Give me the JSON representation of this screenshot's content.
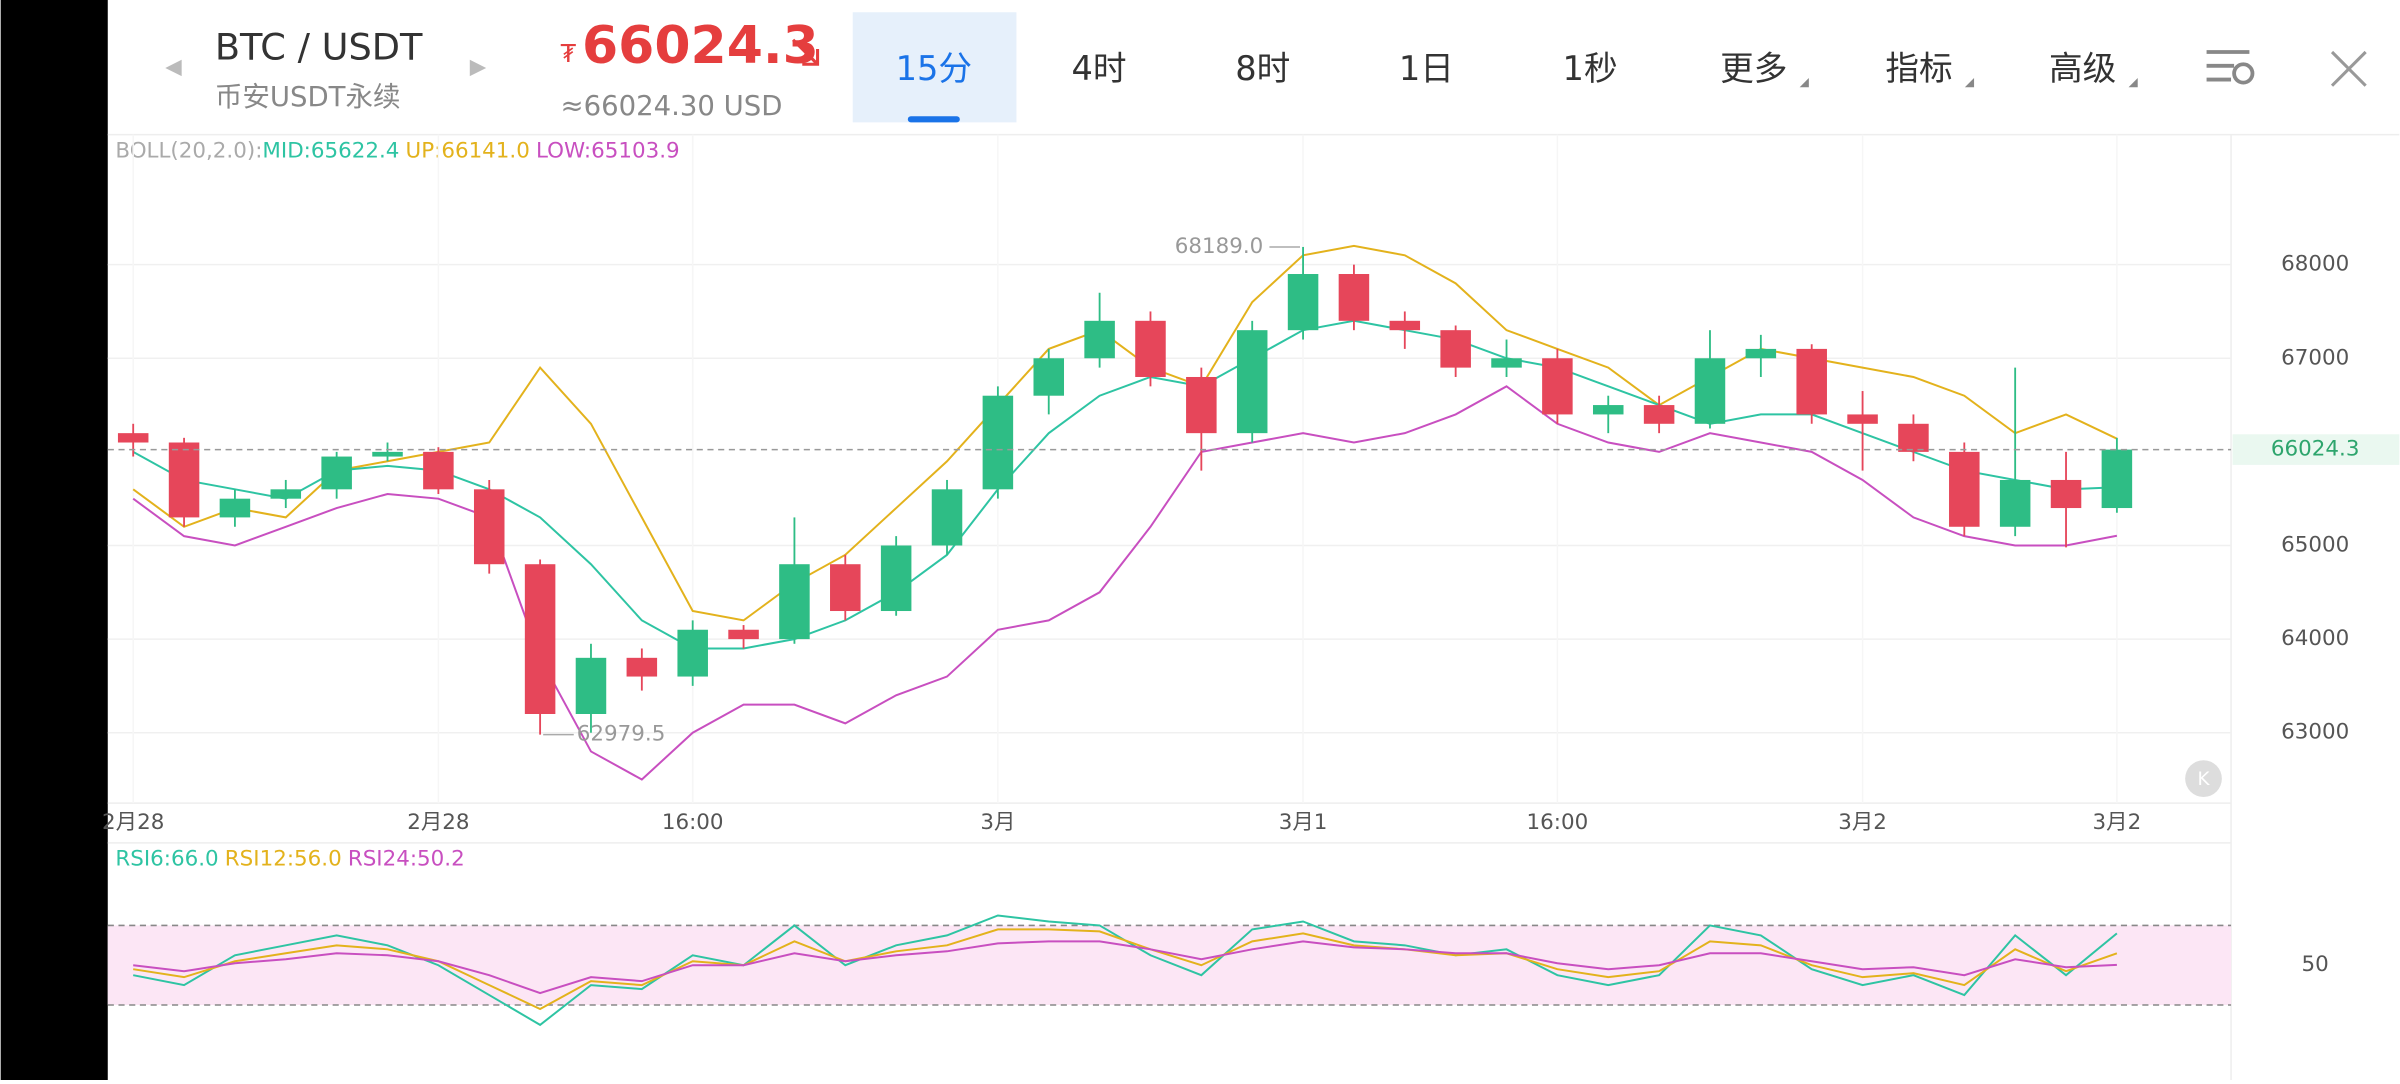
{
  "header": {
    "pair": "BTC / USDT",
    "market": "币安USDT永续",
    "currency_symbol": "₮",
    "price": 66024.3,
    "price_usd": "≈66024.30 USD",
    "tabs": [
      "15分",
      "4时",
      "8时",
      "1日",
      "1秒",
      "更多",
      "指标",
      "高级"
    ],
    "selected_tab": "15分"
  },
  "chart_data": [
    {
      "type": "candlestick",
      "indicator_label": "BOLL(20,2.0):",
      "indicator_values": [
        "MID:65622.4",
        "UP:66141.0",
        "LOW:65103.9"
      ],
      "up_color": "#2ebd85",
      "down_color": "#e6465a",
      "categories": [
        "2月28",
        null,
        null,
        null,
        null,
        null,
        "2月28",
        null,
        null,
        null,
        null,
        "16:00",
        null,
        null,
        null,
        null,
        null,
        "3月",
        null,
        null,
        null,
        null,
        null,
        "3月1",
        null,
        null,
        null,
        null,
        "16:00",
        null,
        null,
        null,
        null,
        null,
        "3月2",
        null,
        null,
        null,
        null,
        "3月2"
      ],
      "ohlc": [
        [
          66200,
          66300,
          65950,
          66100
        ],
        [
          66100,
          66150,
          65200,
          65300
        ],
        [
          65300,
          65600,
          65200,
          65500
        ],
        [
          65500,
          65700,
          65400,
          65600
        ],
        [
          65600,
          66000,
          65500,
          65950
        ],
        [
          65950,
          66100,
          65900,
          66000
        ],
        [
          66000,
          66050,
          65550,
          65600
        ],
        [
          65600,
          65700,
          64700,
          64800
        ],
        [
          64800,
          64850,
          62979.5,
          63200
        ],
        [
          63200,
          63950,
          63000,
          63800
        ],
        [
          63800,
          63900,
          63450,
          63600
        ],
        [
          63600,
          64200,
          63500,
          64100
        ],
        [
          64100,
          64150,
          63900,
          64000
        ],
        [
          64000,
          65300,
          63950,
          64800
        ],
        [
          64800,
          64900,
          64200,
          64300
        ],
        [
          64300,
          65100,
          64250,
          65000
        ],
        [
          65000,
          65700,
          64900,
          65600
        ],
        [
          65600,
          66700,
          65500,
          66600
        ],
        [
          66600,
          67100,
          66400,
          67000
        ],
        [
          67000,
          67700,
          66900,
          67400
        ],
        [
          67400,
          67500,
          66700,
          66800
        ],
        [
          66800,
          66900,
          65800,
          66200
        ],
        [
          66200,
          67400,
          66100,
          67300
        ],
        [
          67300,
          68189,
          67200,
          67900
        ],
        [
          67900,
          68000,
          67300,
          67400
        ],
        [
          67400,
          67500,
          67100,
          67300
        ],
        [
          67300,
          67350,
          66800,
          66900
        ],
        [
          66900,
          67200,
          66800,
          67000
        ],
        [
          67000,
          67100,
          66300,
          66400
        ],
        [
          66400,
          66600,
          66200,
          66500
        ],
        [
          66500,
          66600,
          66200,
          66300
        ],
        [
          66300,
          67300,
          66250,
          67000
        ],
        [
          67000,
          67250,
          66800,
          67100
        ],
        [
          67100,
          67150,
          66300,
          66400
        ],
        [
          66400,
          66650,
          65800,
          66300
        ],
        [
          66300,
          66400,
          65900,
          66000
        ],
        [
          66000,
          66100,
          65100,
          65200
        ],
        [
          65200,
          66900,
          65100,
          65700
        ],
        [
          65700,
          66000,
          64980,
          65400
        ],
        [
          65400,
          66150,
          65350,
          66024.3
        ]
      ],
      "series": [
        {
          "name": "UP",
          "color": "#e3b21c",
          "values": [
            65600,
            65200,
            65400,
            65300,
            65800,
            65900,
            66000,
            66100,
            66900,
            66300,
            65300,
            64300,
            64200,
            64600,
            64900,
            65400,
            65900,
            66500,
            67100,
            67300,
            66900,
            66700,
            67600,
            68100,
            68200,
            68100,
            67800,
            67300,
            67100,
            66900,
            66500,
            66800,
            67100,
            67000,
            66900,
            66800,
            66600,
            66200,
            66400,
            66141
          ]
        },
        {
          "name": "MID",
          "color": "#2ec4a3",
          "values": [
            66000,
            65700,
            65600,
            65500,
            65800,
            65850,
            65800,
            65600,
            65300,
            64800,
            64200,
            63900,
            63900,
            64000,
            64200,
            64500,
            64900,
            65600,
            66200,
            66600,
            66800,
            66700,
            67000,
            67300,
            67400,
            67300,
            67200,
            67000,
            66900,
            66700,
            66500,
            66300,
            66400,
            66400,
            66200,
            66000,
            65800,
            65700,
            65600,
            65622.4
          ]
        },
        {
          "name": "LOW",
          "color": "#c84fc0",
          "values": [
            65500,
            65100,
            65000,
            65200,
            65400,
            65550,
            65500,
            65300,
            63800,
            62800,
            62500,
            63000,
            63300,
            63300,
            63100,
            63400,
            63600,
            64100,
            64200,
            64500,
            65200,
            66000,
            66100,
            66200,
            66100,
            66200,
            66400,
            66700,
            66300,
            66100,
            66000,
            66200,
            66100,
            66000,
            65700,
            65300,
            65100,
            65000,
            65000,
            65103.9
          ]
        }
      ],
      "ylim": [
        62248,
        69389
      ],
      "yticks": [
        63000,
        64000,
        65000,
        67000,
        68000
      ],
      "grid": true,
      "last": 66024.3,
      "annotations": [
        {
          "label": "68189.0",
          "index": 23
        },
        {
          "label": "62979.5",
          "index": 8
        }
      ]
    },
    {
      "type": "line",
      "indicator_values": [
        "RSI6:66.0",
        "RSI12:56.0",
        "RSI24:50.2"
      ],
      "series": [
        {
          "name": "RSI6",
          "color": "#2ec4a3",
          "values": [
            45,
            40,
            55,
            60,
            65,
            60,
            50,
            35,
            20,
            40,
            38,
            55,
            50,
            70,
            50,
            60,
            65,
            75,
            72,
            70,
            55,
            45,
            68,
            72,
            62,
            60,
            55,
            58,
            45,
            40,
            45,
            70,
            65,
            48,
            40,
            45,
            35,
            65,
            45,
            66.0
          ]
        },
        {
          "name": "RSI12",
          "color": "#e3b21c",
          "values": [
            48,
            44,
            52,
            56,
            60,
            58,
            52,
            40,
            28,
            42,
            40,
            52,
            50,
            62,
            52,
            57,
            60,
            68,
            68,
            67,
            58,
            50,
            62,
            66,
            60,
            58,
            55,
            56,
            48,
            44,
            47,
            62,
            60,
            50,
            44,
            46,
            40,
            58,
            47,
            56.0
          ]
        },
        {
          "name": "RSI24",
          "color": "#c84fc0",
          "values": [
            50,
            47,
            51,
            53,
            56,
            55,
            52,
            45,
            36,
            44,
            42,
            50,
            50,
            56,
            52,
            55,
            57,
            61,
            62,
            62,
            58,
            53,
            58,
            62,
            59,
            58,
            56,
            56,
            51,
            48,
            50,
            56,
            56,
            52,
            48,
            49,
            45,
            53,
            49,
            50.2
          ]
        }
      ],
      "ylim": [
        -7.7,
        111.5
      ],
      "yticks": [
        50
      ],
      "bands": [
        30,
        70
      ]
    }
  ]
}
